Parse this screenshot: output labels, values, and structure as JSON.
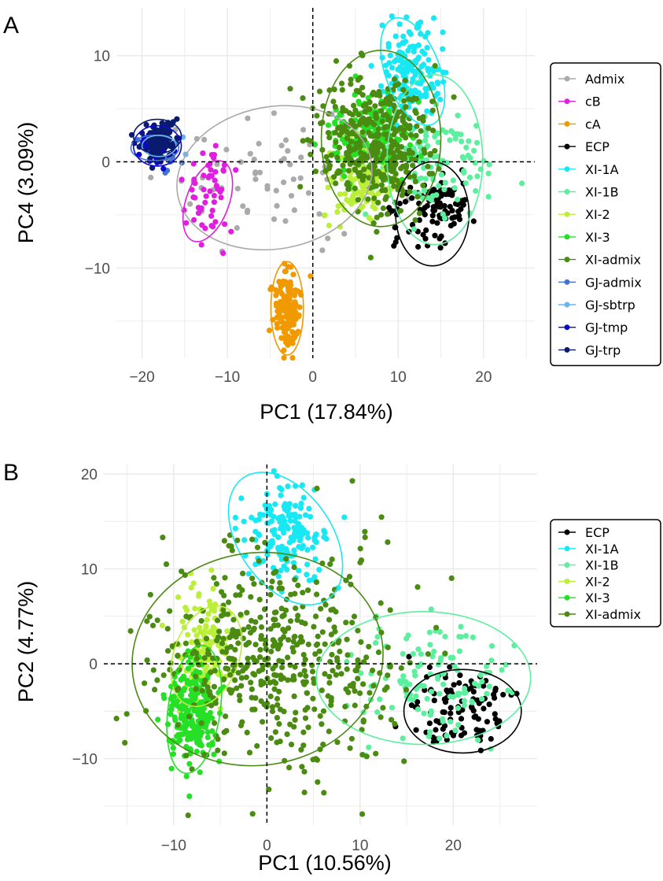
{
  "chart_data": [
    {
      "panel": "A",
      "type": "scatter",
      "xlabel": "PC1 (17.84%)",
      "ylabel": "PC4 (3.09%)",
      "xlim": [
        -23,
        26
      ],
      "ylim": [
        -18.5,
        14.5
      ],
      "xticks": [
        -20,
        -10,
        0,
        10,
        20
      ],
      "xtick_labels": [
        "−20",
        "−10",
        "0",
        "10",
        "20"
      ],
      "yticks": [
        -10,
        0,
        10
      ],
      "ytick_labels": [
        "−10",
        "0",
        "10"
      ],
      "grid": true,
      "reference_lines": {
        "x": 0,
        "y": 0
      },
      "legend_position": "right",
      "series": [
        {
          "name": "Admix",
          "color": "#aaaaaa",
          "n": 70,
          "center": [
            -4,
            -1.5
          ],
          "spread": [
            7,
            3.2
          ],
          "ellipse": {
            "center": [
              -4.5,
              -1.5
            ],
            "rx": 11.5,
            "ry": 6.7,
            "angle": -10
          }
        },
        {
          "name": "cB",
          "color": "#e01ee0",
          "n": 55,
          "center": [
            -12.2,
            -3.3
          ],
          "spread": [
            1.6,
            2.0
          ],
          "ellipse": {
            "center": [
              -12.3,
              -3.7
            ],
            "rx": 2.5,
            "ry": 4.0,
            "angle": 20
          }
        },
        {
          "name": "cA",
          "color": "#f09a00",
          "n": 170,
          "center": [
            -3,
            -14
          ],
          "spread": [
            0.8,
            1.9
          ],
          "ellipse": {
            "center": [
              -3,
              -13.8
            ],
            "rx": 1.9,
            "ry": 4.4,
            "angle": 0
          }
        },
        {
          "name": "ECP",
          "color": "#000000",
          "n": 110,
          "center": [
            14,
            -4.5
          ],
          "spread": [
            2.3,
            2.0
          ],
          "ellipse": {
            "center": [
              14,
              -4.9
            ],
            "rx": 4.3,
            "ry": 4.9,
            "angle": 0
          }
        },
        {
          "name": "XI-1A",
          "color": "#18e8f4",
          "n": 160,
          "center": [
            11.5,
            8.7
          ],
          "spread": [
            1.8,
            2.2
          ],
          "ellipse": {
            "center": [
              11.7,
              8.5
            ],
            "rx": 3.2,
            "ry": 5.3,
            "angle": -20
          }
        },
        {
          "name": "XI-1B",
          "color": "#5cef9e",
          "n": 120,
          "center": [
            14.5,
            0
          ],
          "spread": [
            3.5,
            2.5
          ],
          "ellipse": {
            "center": [
              14.3,
              0.2
            ],
            "rx": 5.6,
            "ry": 8.0,
            "angle": 0
          }
        },
        {
          "name": "XI-2",
          "color": "#bcef3a",
          "n": 150,
          "center": [
            6,
            -1.5
          ],
          "spread": [
            2.0,
            2.0
          ],
          "ellipse": null
        },
        {
          "name": "XI-3",
          "color": "#26e026",
          "n": 160,
          "center": [
            6.5,
            2.5
          ],
          "spread": [
            2.2,
            2.0
          ],
          "ellipse": null
        },
        {
          "name": "XI-admix",
          "color": "#4b8b12",
          "n": 400,
          "center": [
            7.5,
            2.0
          ],
          "spread": [
            3.5,
            3.0
          ],
          "ellipse": {
            "center": [
              8.0,
              2.2
            ],
            "rx": 7.0,
            "ry": 8.3,
            "angle": 0
          }
        },
        {
          "name": "GJ-admix",
          "color": "#4472cc",
          "n": 20,
          "center": [
            -17.5,
            1.2
          ],
          "spread": [
            1.5,
            1.0
          ],
          "ellipse": {
            "center": [
              -18.5,
              1.3
            ],
            "rx": 2.8,
            "ry": 1.2,
            "angle": 0
          }
        },
        {
          "name": "GJ-sbtrp",
          "color": "#6ab4ec",
          "n": 12,
          "center": [
            -17.5,
            1.5
          ],
          "spread": [
            1.2,
            0.6
          ],
          "ellipse": {
            "center": [
              -18,
              1.5
            ],
            "rx": 2.0,
            "ry": 1.0,
            "angle": 0
          }
        },
        {
          "name": "GJ-tmp",
          "color": "#0a0acc",
          "n": 80,
          "center": [
            -18.3,
            1.5
          ],
          "spread": [
            0.8,
            0.8
          ],
          "ellipse": {
            "center": [
              -18.2,
              1.5
            ],
            "rx": 2.8,
            "ry": 1.9,
            "angle": 0
          }
        },
        {
          "name": "GJ-trp",
          "color": "#0a1a6e",
          "n": 110,
          "center": [
            -18,
            2.2
          ],
          "spread": [
            1.0,
            0.9
          ],
          "ellipse": {
            "center": [
              -18.2,
              2.4
            ],
            "rx": 2.8,
            "ry": 1.6,
            "angle": 0
          }
        }
      ]
    },
    {
      "panel": "B",
      "type": "scatter",
      "xlabel": "PC1 (10.56%)",
      "ylabel": "PC2 (4.77%)",
      "xlim": [
        -17.5,
        29
      ],
      "ylim": [
        -17,
        21
      ],
      "xticks": [
        -10,
        0,
        10,
        20
      ],
      "xtick_labels": [
        "−10",
        "0",
        "10",
        "20"
      ],
      "yticks": [
        -10,
        0,
        10,
        20
      ],
      "ytick_labels": [
        "−10",
        "0",
        "10",
        "20"
      ],
      "grid": true,
      "reference_lines": {
        "x": 0,
        "y": 0
      },
      "legend_position": "right",
      "series": [
        {
          "name": "ECP",
          "color": "#000000",
          "n": 110,
          "center": [
            21,
            -5
          ],
          "spread": [
            2.6,
            2.0
          ],
          "ellipse": {
            "center": [
              21,
              -5
            ],
            "rx": 6.3,
            "ry": 4.4,
            "angle": 0
          }
        },
        {
          "name": "XI-1A",
          "color": "#18e8f4",
          "n": 170,
          "center": [
            2,
            13.5
          ],
          "spread": [
            2.2,
            2.6
          ],
          "ellipse": {
            "center": [
              2,
              13.2
            ],
            "rx": 5.0,
            "ry": 7.8,
            "angle": -35
          }
        },
        {
          "name": "XI-1B",
          "color": "#5cef9e",
          "n": 130,
          "center": [
            17.5,
            -2
          ],
          "spread": [
            4.5,
            3.0
          ],
          "ellipse": {
            "center": [
              16.8,
              -1.5
            ],
            "rx": 11.5,
            "ry": 7.0,
            "angle": 0
          }
        },
        {
          "name": "XI-2",
          "color": "#bcef3a",
          "n": 140,
          "center": [
            -6.5,
            1.5
          ],
          "spread": [
            1.3,
            3.0
          ],
          "ellipse": {
            "center": [
              -6.5,
              0.8
            ],
            "rx": 3.5,
            "ry": 5.5,
            "angle": 20
          }
        },
        {
          "name": "XI-3",
          "color": "#26e026",
          "n": 230,
          "center": [
            -8,
            -5
          ],
          "spread": [
            1.3,
            2.5
          ],
          "ellipse": {
            "center": [
              -7.8,
              -4.8
            ],
            "rx": 2.8,
            "ry": 6.8,
            "angle": 8
          }
        },
        {
          "name": "XI-admix",
          "color": "#4b8b12",
          "n": 500,
          "center": [
            1.5,
            0.5
          ],
          "spread": [
            6.5,
            5.5
          ],
          "ellipse": {
            "center": [
              -1,
              0.5
            ],
            "rx": 13.5,
            "ry": 11.2,
            "angle": -8
          }
        }
      ]
    }
  ],
  "panel_letters": {
    "a": "A",
    "b": "B"
  }
}
